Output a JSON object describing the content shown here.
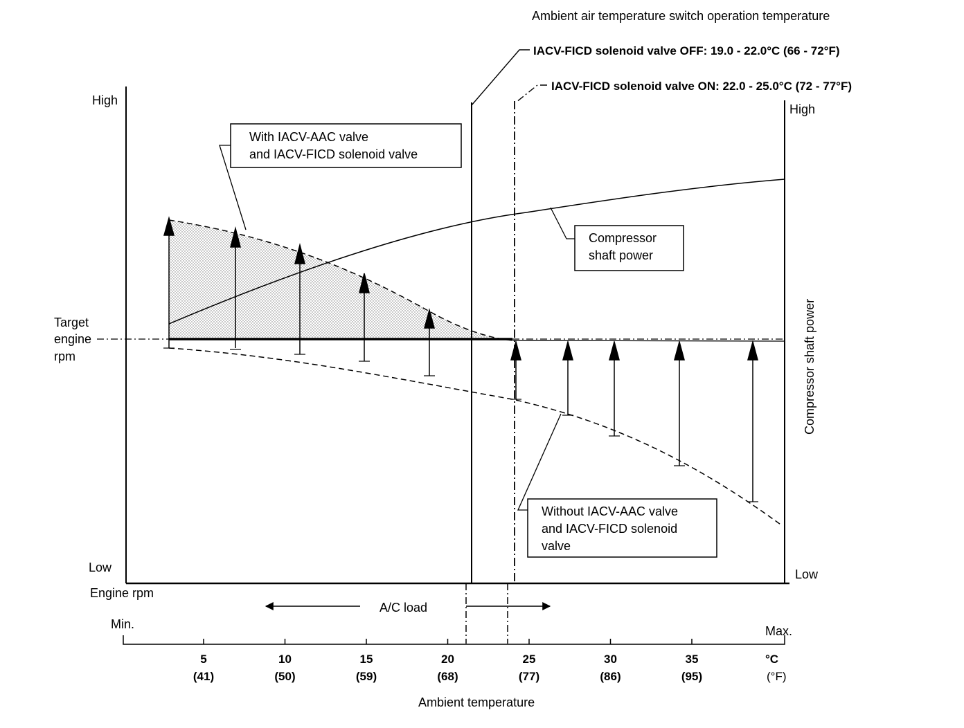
{
  "header": {
    "switch_title": "Ambient air temperature switch operation temperature",
    "valve_off": "IACV-FICD solenoid valve OFF: 19.0 - 22.0°C (66 - 72°F)",
    "valve_on": "IACV-FICD solenoid valve ON: 22.0 - 25.0°C (72 - 77°F)"
  },
  "left_axis": {
    "high": "High",
    "low": "Low",
    "title": "Engine rpm",
    "target_line1": "Target",
    "target_line2": "engine",
    "target_line3": "rpm"
  },
  "right_axis": {
    "high": "High",
    "low": "Low",
    "title": "Compressor shaft power"
  },
  "callouts": {
    "with_line1": "With IACV-AAC valve",
    "with_line2": "and IACV-FICD solenoid valve",
    "compressor_line1": "Compressor",
    "compressor_line2": "shaft power",
    "without_line1": "Without IACV-AAC valve",
    "without_line2": "and IACV-FICD solenoid",
    "without_line3": "valve"
  },
  "ac_load": "A/C load",
  "bottom_axis": {
    "min": "Min.",
    "max": "Max.",
    "title": "Ambient temperature",
    "unit_c": "°C",
    "unit_f": "(°F)",
    "ticks": [
      {
        "c": "5",
        "f": "(41)"
      },
      {
        "c": "10",
        "f": "(50)"
      },
      {
        "c": "15",
        "f": "(59)"
      },
      {
        "c": "20",
        "f": "(68)"
      },
      {
        "c": "25",
        "f": "(77)"
      },
      {
        "c": "30",
        "f": "(86)"
      },
      {
        "c": "35",
        "f": "(95)"
      }
    ]
  },
  "colors": {
    "ink": "#000000",
    "shade": "#c8c8c8"
  }
}
